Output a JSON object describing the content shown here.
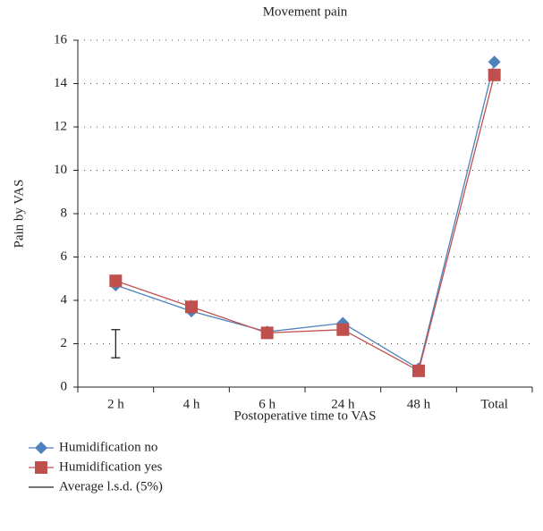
{
  "chart_data": {
    "type": "line",
    "title": "Movement pain",
    "x_label": "Postoperative time to VAS",
    "y_label": "Pain by VAS",
    "categories": [
      "2 h",
      "4 h",
      "6 h",
      "24 h",
      "48 h",
      "Total"
    ],
    "series": [
      {
        "name": "Humidification no",
        "color": "#4f81bd",
        "marker": "diamond",
        "values": [
          4.7,
          3.5,
          2.55,
          2.95,
          0.85,
          15.0
        ]
      },
      {
        "name": "Humidification yes",
        "color": "#c0504d",
        "marker": "square",
        "values": [
          4.9,
          3.7,
          2.5,
          2.65,
          0.75,
          14.4
        ]
      }
    ],
    "error_bar": {
      "name": "Average l.s.d. (5%)",
      "color": "#222",
      "range": [
        1.35,
        2.65
      ]
    },
    "ylim": [
      0,
      16
    ],
    "yticks": [
      0,
      2,
      4,
      6,
      8,
      10,
      12,
      14,
      16
    ],
    "grid": true
  }
}
